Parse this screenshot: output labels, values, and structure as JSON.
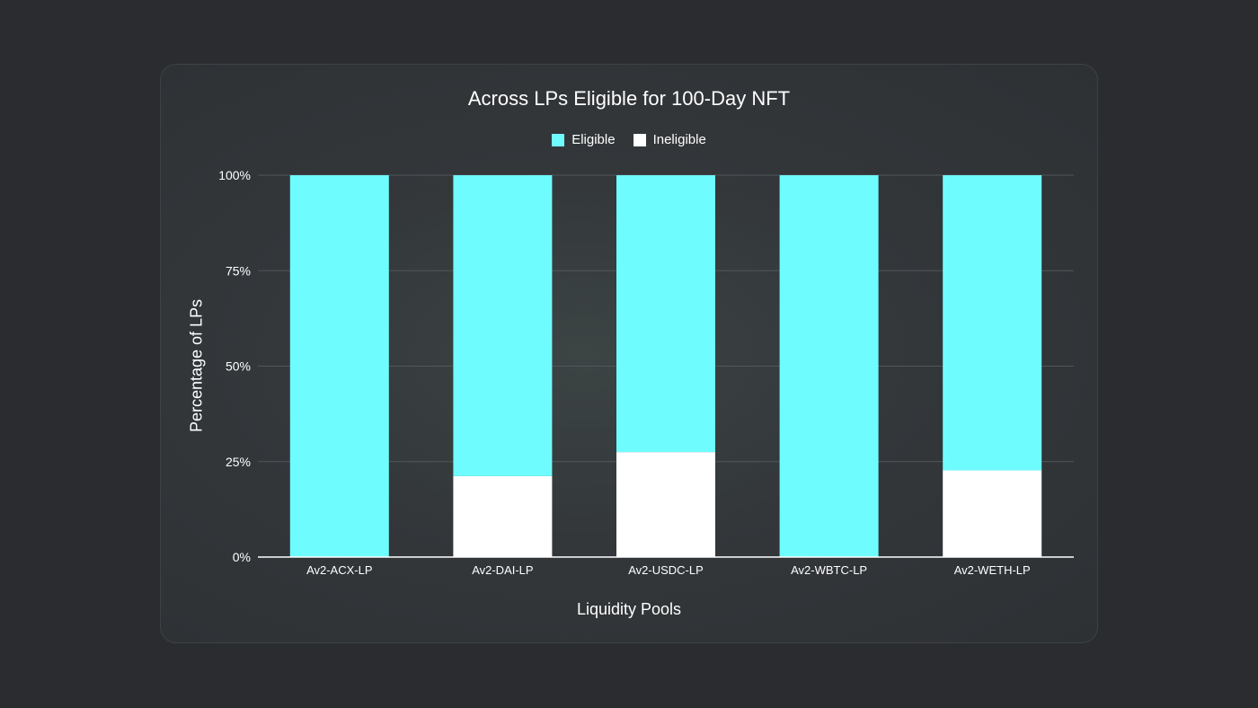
{
  "chart_data": {
    "type": "bar",
    "stacked": true,
    "title": "Across LPs Eligible for 100-Day NFT",
    "xlabel": "Liquidity Pools",
    "ylabel": "Percentage of LPs",
    "ylim": [
      0,
      100
    ],
    "yticks": [
      "0%",
      "25%",
      "50%",
      "75%",
      "100%"
    ],
    "grid": true,
    "legend_position": "top",
    "categories": [
      "Av2-ACX-LP",
      "Av2-DAI-LP",
      "Av2-USDC-LP",
      "Av2-WBTC-LP",
      "Av2-WETH-LP"
    ],
    "series": [
      {
        "name": "Ineligible",
        "color": "#ffffff",
        "values": [
          0,
          21.2,
          27.5,
          0,
          22.7
        ]
      },
      {
        "name": "Eligible",
        "color": "#6ffcff",
        "values": [
          100,
          78.8,
          72.5,
          100,
          77.3
        ]
      }
    ]
  }
}
